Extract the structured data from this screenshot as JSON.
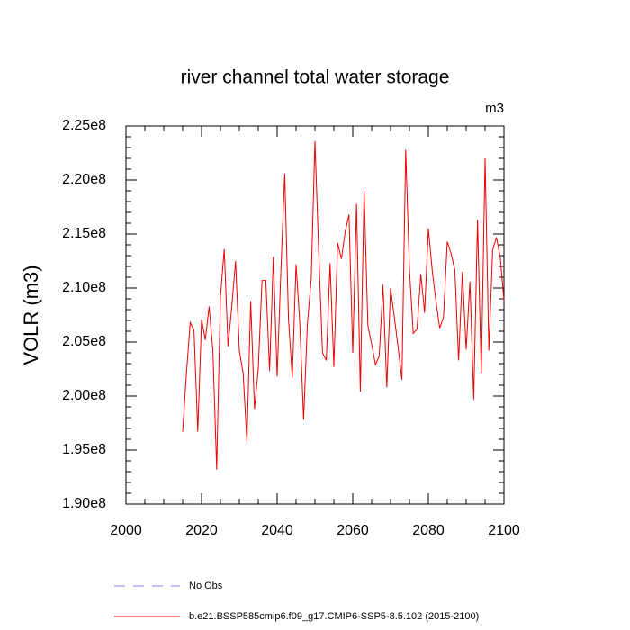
{
  "chart_data": {
    "type": "line",
    "title": "river channel total water storage",
    "units": "m3",
    "ylabel": "VOLR  (m3)",
    "x": [
      2015,
      2016,
      2017,
      2018,
      2019,
      2020,
      2021,
      2022,
      2023,
      2024,
      2025,
      2026,
      2027,
      2028,
      2029,
      2030,
      2031,
      2032,
      2033,
      2034,
      2035,
      2036,
      2037,
      2038,
      2039,
      2040,
      2041,
      2042,
      2043,
      2044,
      2045,
      2046,
      2047,
      2048,
      2049,
      2050,
      2051,
      2052,
      2053,
      2054,
      2055,
      2056,
      2057,
      2058,
      2059,
      2060,
      2061,
      2062,
      2063,
      2064,
      2065,
      2066,
      2067,
      2068,
      2069,
      2070,
      2071,
      2072,
      2073,
      2074,
      2075,
      2076,
      2077,
      2078,
      2079,
      2080,
      2081,
      2082,
      2083,
      2084,
      2085,
      2086,
      2087,
      2088,
      2089,
      2090,
      2091,
      2092,
      2093,
      2094,
      2095,
      2096,
      2097,
      2098,
      2099,
      2100
    ],
    "series": [
      {
        "name": "b.e21.BSSP585cmip6.f09_g17.CMIP6-SSP5-8.5.102 (2015-2100)",
        "color": "#ee0000",
        "values": [
          196700000,
          202100000,
          206800000,
          206100000,
          196700000,
          207100000,
          205200000,
          208300000,
          204200000,
          193200000,
          209200000,
          213600000,
          204600000,
          208300000,
          212500000,
          204200000,
          202100000,
          195800000,
          208800000,
          198800000,
          202500000,
          210700000,
          210700000,
          202300000,
          212900000,
          201800000,
          211700000,
          220600000,
          207100000,
          201700000,
          212200000,
          206700000,
          197800000,
          206700000,
          210800000,
          223600000,
          213300000,
          204000000,
          203300000,
          212300000,
          202700000,
          214200000,
          212700000,
          215200000,
          216800000,
          204000000,
          217800000,
          200400000,
          219000000,
          206500000,
          204800000,
          202900000,
          203700000,
          210300000,
          200800000,
          210000000,
          207300000,
          204500000,
          201500000,
          222800000,
          211700000,
          205800000,
          206200000,
          211300000,
          207700000,
          215500000,
          211700000,
          208800000,
          206300000,
          207300000,
          214300000,
          213200000,
          211700000,
          203300000,
          211500000,
          204300000,
          210600000,
          199700000,
          216300000,
          202100000,
          222000000,
          204200000,
          213500000,
          214700000,
          212900000,
          208800000
        ]
      }
    ],
    "reference": {
      "name": "No Obs",
      "color": "#8080ff",
      "dash": true
    },
    "xlim": [
      2000,
      2100
    ],
    "xticks": [
      2000,
      2020,
      2040,
      2060,
      2080,
      2100
    ],
    "ylim": [
      190000000,
      225000000
    ],
    "yticks": [
      {
        "value": 190000000,
        "label": "1.90e8"
      },
      {
        "value": 195000000,
        "label": "1.95e8"
      },
      {
        "value": 200000000,
        "label": "2.00e8"
      },
      {
        "value": 205000000,
        "label": "2.05e8"
      },
      {
        "value": 210000000,
        "label": "2.10e8"
      },
      {
        "value": 215000000,
        "label": "2.15e8"
      },
      {
        "value": 220000000,
        "label": "2.20e8"
      },
      {
        "value": 225000000,
        "label": "2.25e8"
      }
    ]
  }
}
